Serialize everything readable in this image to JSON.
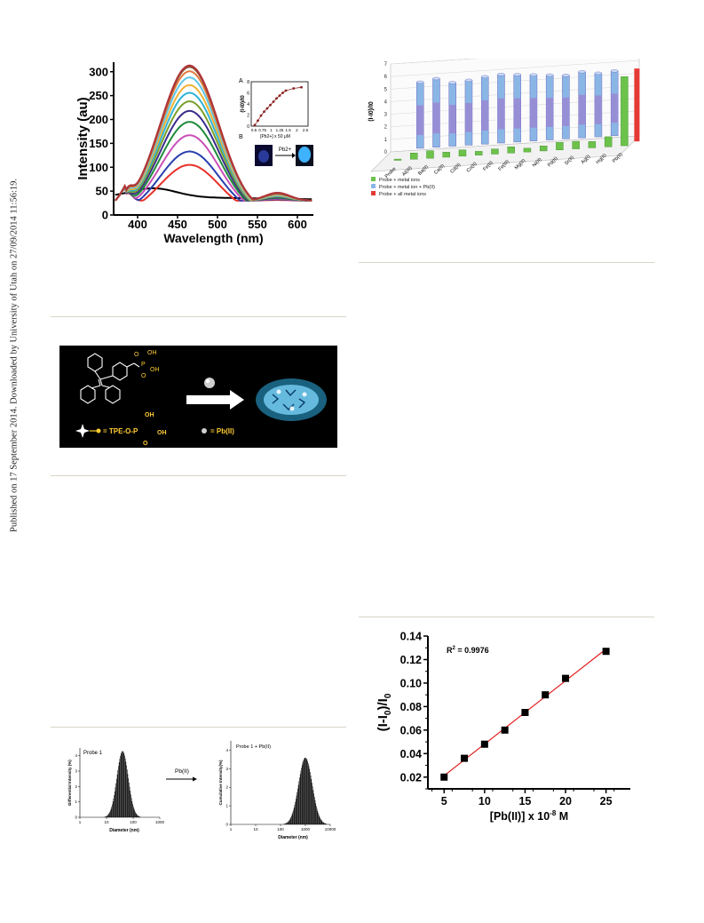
{
  "sidebar": {
    "text": "Published on 17 September 2014. Downloaded by University of Utah on 27/09/2014 11:56:19."
  },
  "fig_spectra": {
    "chart_data": {
      "type": "line",
      "xlabel": "Wavelength (nm)",
      "ylabel": "Intensity (au)",
      "xlim": [
        370,
        620
      ],
      "ylim": [
        0,
        320
      ],
      "xticks": [
        400,
        450,
        500,
        550,
        600
      ],
      "yticks": [
        0,
        50,
        100,
        150,
        200,
        250,
        300
      ],
      "peak_x": 465,
      "series": [
        {
          "peak": 55,
          "color": "#000000"
        },
        {
          "peak": 105,
          "color": "#e8302a"
        },
        {
          "peak": 133,
          "color": "#2a3fae"
        },
        {
          "peak": 167,
          "color": "#c94fb8"
        },
        {
          "peak": 195,
          "color": "#1f8a3a"
        },
        {
          "peak": 218,
          "color": "#3a2c8a"
        },
        {
          "peak": 238,
          "color": "#7a9f2a"
        },
        {
          "peak": 256,
          "color": "#2fb3d6"
        },
        {
          "peak": 272,
          "color": "#f0b232"
        },
        {
          "peak": 288,
          "color": "#5ec7e8"
        },
        {
          "peak": 301,
          "color": "#e07a3c"
        },
        {
          "peak": 310,
          "color": "#8a4a2e"
        },
        {
          "peak": 313,
          "color": "#b0353a"
        }
      ]
    },
    "inset": {
      "label_a": "A",
      "label_b": "B",
      "ylabel": "(I-I0)/I0",
      "xlabel": "[Pb2+] x 50 μM",
      "xticks": [
        "0.5",
        "0.75",
        "1",
        "1.25",
        "1.5",
        "2",
        "2.5"
      ],
      "yticks": [
        "0",
        "2",
        "4",
        "6",
        "8"
      ],
      "points": [
        [
          0,
          0.2
        ],
        [
          0.1,
          1.0
        ],
        [
          0.2,
          1.9
        ],
        [
          0.3,
          2.6
        ],
        [
          0.4,
          3.2
        ],
        [
          0.5,
          3.8
        ],
        [
          0.6,
          4.4
        ],
        [
          0.7,
          5.0
        ],
        [
          0.8,
          5.5
        ],
        [
          0.9,
          6.0
        ],
        [
          1.0,
          6.4
        ],
        [
          1.25,
          6.8
        ],
        [
          1.5,
          7.0
        ]
      ],
      "arrow_label": "Pb2+"
    }
  },
  "fig_bar3d": {
    "chart_data": {
      "type": "bar",
      "ylabel": "(I-I0)/I0",
      "yticks": [
        0,
        1,
        2,
        3,
        4,
        5,
        6,
        7
      ],
      "categories": [
        "Probe",
        "Al(III)",
        "Ba(II)",
        "Ca(II)",
        "Cd(II)",
        "Co(II)",
        "Fe(II)",
        "Fe(III)",
        "Mg(II)",
        "Ni(II)",
        "Pd(II)",
        "Sr(II)",
        "Ag(I)",
        "Hg(II)",
        "Pb(II)"
      ],
      "series": [
        {
          "name": "Probe + metal ions",
          "color": "#6cc24a",
          "values": [
            0.1,
            0.5,
            0.6,
            0.4,
            0.5,
            0.3,
            0.4,
            0.5,
            0.3,
            0.4,
            0.6,
            0.6,
            0.5,
            0.8,
            5.5
          ]
        },
        {
          "name": "Probe + metal ion + Pb(II)",
          "color": "#8ab6e6",
          "values": [
            0,
            5.4,
            5.6,
            5.2,
            5.3,
            5.5,
            5.6,
            5.5,
            5.4,
            5.3,
            5.2,
            5.4,
            5.2,
            5.3,
            0
          ]
        },
        {
          "name": "Probe + all metal ions",
          "color": "#e53935",
          "values": [
            0,
            0,
            0,
            0,
            0,
            0,
            0,
            0,
            0,
            0,
            0,
            0,
            0,
            0,
            5.8
          ]
        }
      ]
    }
  },
  "fig_scheme": {
    "label_oh1": "OH",
    "label_p": "P",
    "label_oh2": "OH",
    "label_o": "O",
    "legend_eq1": "= TPE-O-P",
    "legend_oh_top": "OH",
    "legend_oh_right": "OH",
    "legend_o_bottom": "O",
    "legend_eq2": "= Pb(II)"
  },
  "fig_dls": {
    "left": {
      "title": "Probe 1",
      "ylabel": "Differential Intensity (%)",
      "xlabel": "Diameter (nm)",
      "xticks": [
        "1",
        "10",
        "100",
        "1000"
      ],
      "yticks": [
        "0",
        "1",
        "2",
        "3",
        "4"
      ],
      "chart_data": {
        "type": "bar",
        "peak_diameter_nm": 40,
        "peak_value": 4.3
      }
    },
    "arrow_label": "Pb(II)",
    "right": {
      "title": "Probe 1 + Pb(II)",
      "ylabel": "Cumulative Intensity(%)",
      "xlabel": "Diameter (nm)",
      "xticks": [
        "1",
        "10",
        "100",
        "1000",
        "10000"
      ],
      "yticks": [
        "0",
        "1",
        "2",
        "3",
        "4"
      ],
      "chart_data": {
        "type": "bar",
        "peak_diameter_nm": 1000,
        "peak_value": 3.6
      }
    }
  },
  "fig_linear": {
    "chart_data": {
      "type": "scatter",
      "xlabel": "[Pb(II)] x 10-8 M",
      "ylabel": "(I-I0)/I0",
      "annotation": "R2 = 0.9976",
      "xlim": [
        3,
        28
      ],
      "ylim": [
        0.01,
        0.14
      ],
      "xticks": [
        5,
        10,
        15,
        20,
        25
      ],
      "yticks": [
        0.02,
        0.04,
        0.06,
        0.08,
        0.1,
        0.12,
        0.14
      ],
      "ytick_labels": [
        "0.02",
        "0.04",
        "0.06",
        "0.08",
        "0.10",
        "0.12",
        "0.14"
      ],
      "x": [
        5,
        7.5,
        10,
        12.5,
        15,
        17.5,
        20,
        25
      ],
      "y": [
        0.02,
        0.036,
        0.048,
        0.06,
        0.075,
        0.09,
        0.104,
        0.127
      ],
      "fit_color": "#e02020"
    }
  }
}
